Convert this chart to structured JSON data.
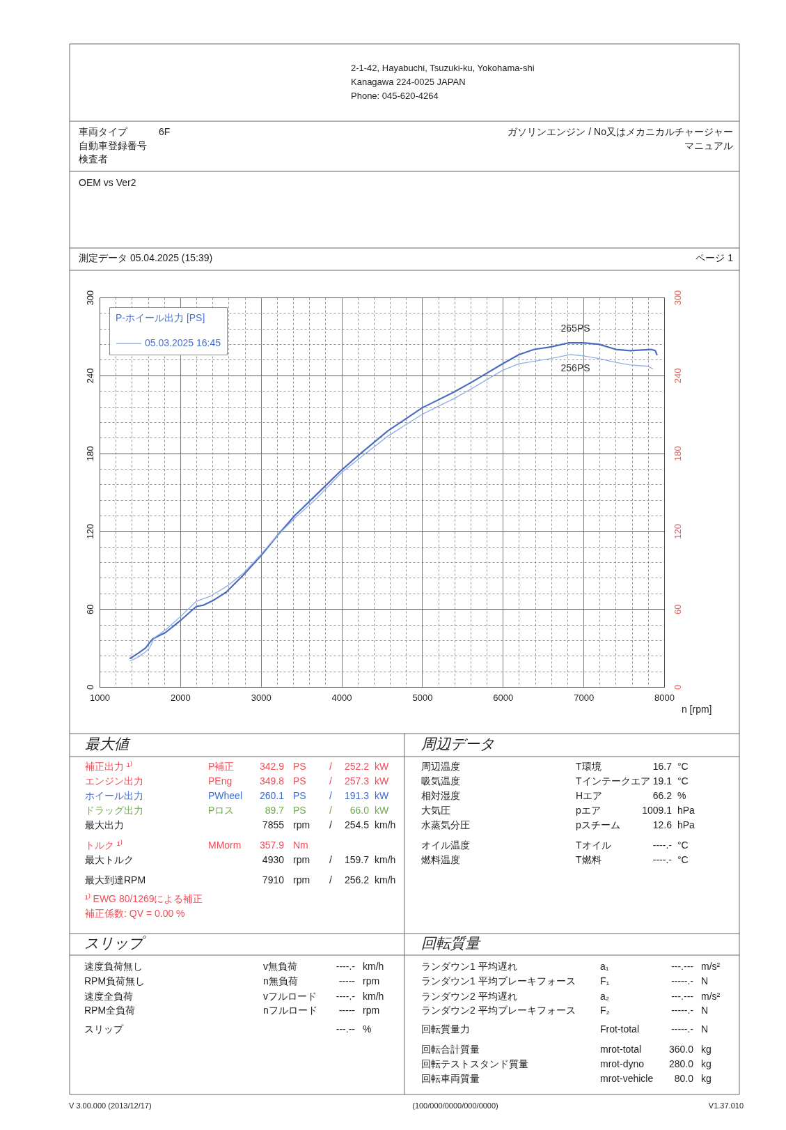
{
  "chart_data": [
    {
      "type": "other",
      "annotations": [
        "2-1-42, Hayabuchi, Tsuzuki-ku, Yokohama-shi",
        "Kanagawa 224-0025 JAPAN",
        "Phone: 045-620-4264"
      ]
    },
    {
      "type": "other",
      "annotations": [
        "車両タイプ\t6F\tガソリンエンジン / No又はメカニカルチャージャー",
        "自動車登録番号\t\tマニュアル",
        "検査者"
      ]
    },
    {
      "type": "other",
      "annotations": [
        "OEM vs Ver2"
      ]
    },
    {
      "type": "other",
      "annotations": [
        "測定データ 05.04.2025 (15:39)\t\tページ 1"
      ]
    },
    {
      "type": "line",
      "legend_title": "P-ホイール出力 [PS]",
      "xlabel": "n [rpm]",
      "legend": "top left",
      "grid": true,
      "xlim": [
        1000,
        8000
      ],
      "xticks": [
        1000,
        {
          "value": 1200,
          "label": null
        },
        {
          "value": 1400,
          "label": null
        },
        {
          "value": 1600,
          "label": null
        },
        {
          "value": 1800,
          "label": null
        },
        2000,
        {
          "value": 2200,
          "label": null
        },
        {
          "value": 2400,
          "label": null
        },
        {
          "value": 2600,
          "label": null
        },
        {
          "value": 2800,
          "label": null
        },
        3000,
        {
          "value": 3200,
          "label": null
        },
        {
          "value": 3400,
          "label": null
        },
        {
          "value": 3600,
          "label": null
        },
        {
          "value": 3800,
          "label": null
        },
        4000,
        {
          "value": 4200,
          "label": null
        },
        {
          "value": 4400,
          "label": null
        },
        {
          "value": 4600,
          "label": null
        },
        {
          "value": 4800,
          "label": null
        },
        5000,
        {
          "value": 5200,
          "label": null
        },
        {
          "value": 5400,
          "label": null
        },
        {
          "value": 5600,
          "label": null
        },
        {
          "value": 5800,
          "label": null
        },
        6000,
        {
          "value": 6200,
          "label": null
        },
        {
          "value": 6400,
          "label": null
        },
        {
          "value": 6600,
          "label": null
        },
        {
          "value": 6800,
          "label": null
        },
        7000,
        {
          "value": 7200,
          "label": null
        },
        {
          "value": 7400,
          "label": null
        },
        {
          "value": 7600,
          "label": null
        },
        {
          "value": 7800,
          "label": null
        },
        8000
      ],
      "ylim": [
        0,
        300
      ],
      "yticks": [
        0,
        {
          "value": 12,
          "label": null
        },
        {
          "value": 24,
          "label": null
        },
        {
          "value": 36,
          "label": null
        },
        {
          "value": 48,
          "label": null
        },
        60,
        {
          "value": 72,
          "label": null
        },
        {
          "value": 84,
          "label": null
        },
        {
          "value": 96,
          "label": null
        },
        {
          "value": 108,
          "label": null
        },
        120,
        {
          "value": 132,
          "label": null
        },
        {
          "value": 144,
          "label": null
        },
        {
          "value": 156,
          "label": null
        },
        {
          "value": 168,
          "label": null
        },
        180,
        {
          "value": 192,
          "label": null
        },
        {
          "value": 204,
          "label": null
        },
        {
          "value": 216,
          "label": null
        },
        {
          "value": 228,
          "label": null
        },
        240,
        {
          "value": 252,
          "label": null
        },
        {
          "value": 264,
          "label": null
        },
        {
          "value": 276,
          "label": null
        },
        {
          "value": 288,
          "label": null
        },
        300
      ],
      "y2lim": [
        0,
        300
      ],
      "y2ticks": [
        0,
        60,
        120,
        180,
        240,
        300
      ],
      "series": [
        {
          "color": "#4a6cc0",
          "x": [
            1380,
            1480,
            1570,
            1620,
            1660,
            1820,
            2000,
            2200,
            2290,
            2420,
            2570,
            2780,
            3000,
            3210,
            3420,
            3670,
            4000,
            4240,
            4570,
            5000,
            5390,
            5620,
            6000,
            6200,
            6390,
            6600,
            6810,
            7000,
            7190,
            7400,
            7580,
            7840,
            7890,
            7910
          ],
          "values": [
            22,
            26,
            30,
            34,
            37,
            42,
            51,
            62,
            63,
            67,
            73,
            86,
            101,
            117,
            132,
            147,
            167,
            180,
            197,
            215,
            227,
            235,
            249,
            256,
            260,
            262,
            265,
            265,
            264,
            260,
            259,
            260,
            259,
            256
          ]
        },
        {
          "name": "05.03.2025 16:45",
          "color": "#8eaee6",
          "x": [
            1380,
            1480,
            1570,
            1620,
            1680,
            1820,
            2000,
            2200,
            2380,
            2590,
            2790,
            3000,
            3180,
            3420,
            3670,
            4000,
            4240,
            4570,
            5000,
            5390,
            5620,
            6000,
            6200,
            6600,
            6840,
            7000,
            7190,
            7400,
            7580,
            7800,
            7860
          ],
          "values": [
            20,
            23,
            27,
            30,
            38,
            44,
            54,
            66,
            70,
            78,
            88,
            102,
            115,
            130,
            144,
            165,
            177,
            193,
            210,
            222,
            230,
            244,
            249,
            253,
            256,
            255,
            253,
            250,
            248,
            247,
            245
          ]
        }
      ],
      "annotations": [
        {
          "text": "265PS",
          "x": 6900,
          "y": 265
        },
        {
          "text": "256PS",
          "x": 6900,
          "y": 256
        }
      ]
    },
    {
      "type": "other",
      "title": "最大値",
      "annotations": [
        "補正出力 ¹⁾\tP補正\t342.9\tPS\t/\t252.2\tkW",
        "エンジン出力\tPEng\t349.8\tPS\t/\t257.3\tkW",
        "ホイール出力\tPWheel\t260.1\tPS\t/\t191.3\tkW",
        "ドラッグ出力\tPロス\t89.7\tPS\t/\t66.0\tkW",
        "最大出力\t\t7855\trpm\t/\t254.5\tkm/h",
        "トルク ¹⁾\tMMorm\t357.9\tNm",
        "最大トルク\t\t4930\trpm\t/\t159.7\tkm/h",
        "最大到達RPM\t\t7910\trpm\t/\t256.2\tkm/h",
        "¹⁾ EWG 80/1269による補正",
        "補正係数: QV =  0.00 %"
      ],
      "colors": [
        "#f24d57",
        "#f24d57",
        "#3d6bd1",
        "#70a850",
        "#222222",
        "#f24d57",
        "#222222",
        "#222222",
        "#f24d57",
        "#f24d57"
      ]
    },
    {
      "type": "other",
      "title": "周辺データ",
      "annotations": [
        "周辺温度\tT環境\t16.7\t°C",
        "吸気温度\tTインテークエア\t19.1\t°C",
        "相対湿度\tHエア\t66.2\t%",
        "大気圧\tpエア\t1009.1\thPa",
        "水蒸気分圧\tpスチーム\t12.6\thPa",
        "オイル温度\tTオイル\t----.-\t°C",
        "燃料温度\tT燃料\t----.-\t°C"
      ]
    },
    {
      "type": "other",
      "title": "スリップ",
      "annotations": [
        "速度負荷無し\tv無負荷\t----.-\tkm/h",
        "RPM負荷無し\tn無負荷\t-----\trpm",
        "速度全負荷\tvフルロード\t----.-\tkm/h",
        "RPM全負荷\tnフルロード\t-----\trpm",
        "スリップ\t\t---.--\t%"
      ]
    },
    {
      "type": "other",
      "title": "回転質量",
      "annotations": [
        "ランダウン1 平均遅れ\ta₁\t---.---\tm/s²",
        "ランダウン1 平均ブレーキフォース\tF₁\t-----.-\tN",
        "ランダウン2 平均遅れ\ta₂\t---.---\tm/s²",
        "ランダウン2 平均ブレーキフォース\tF₂\t-----.-\tN",
        "回転質量力\tFrot-total\t-----.-\tN",
        "回転合計質量\tmrot-total\t360.0\tkg",
        "回転テストスタンド質量\tmrot-dyno\t280.0\tkg",
        "回転車両質量\tmrot-vehicle\t80.0\tkg"
      ]
    },
    {
      "type": "other",
      "annotations": [
        "V 3.00.000 (2013/12/17)\t(100/000/0000/000/0000)\tV1.37.010"
      ]
    }
  ]
}
